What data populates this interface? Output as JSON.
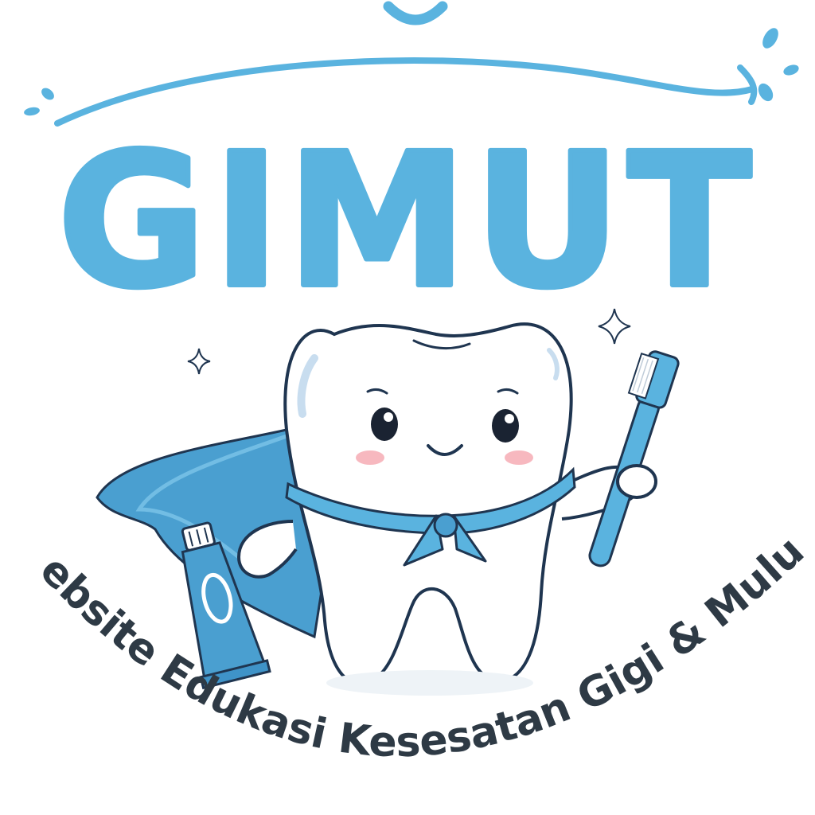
{
  "logo": {
    "brand_name": "GIMUT",
    "tagline": "Website Edukasi Kesesatan Gigi & Mulut"
  },
  "colors": {
    "brand_blue": "#5ab3df",
    "dark_blue": "#3f93c8",
    "outline": "#1f3550",
    "tagline": "#2e3a45",
    "tooth_fill": "#ffffff",
    "cheek": "#f7b8bf"
  },
  "icons": [
    "smile-arc-icon",
    "swoosh-icon",
    "water-drop-icon",
    "sparkle-icon",
    "tooth-mascot",
    "cape-icon",
    "toothpaste-tube-icon",
    "toothbrush-icon",
    "bandana-icon"
  ]
}
